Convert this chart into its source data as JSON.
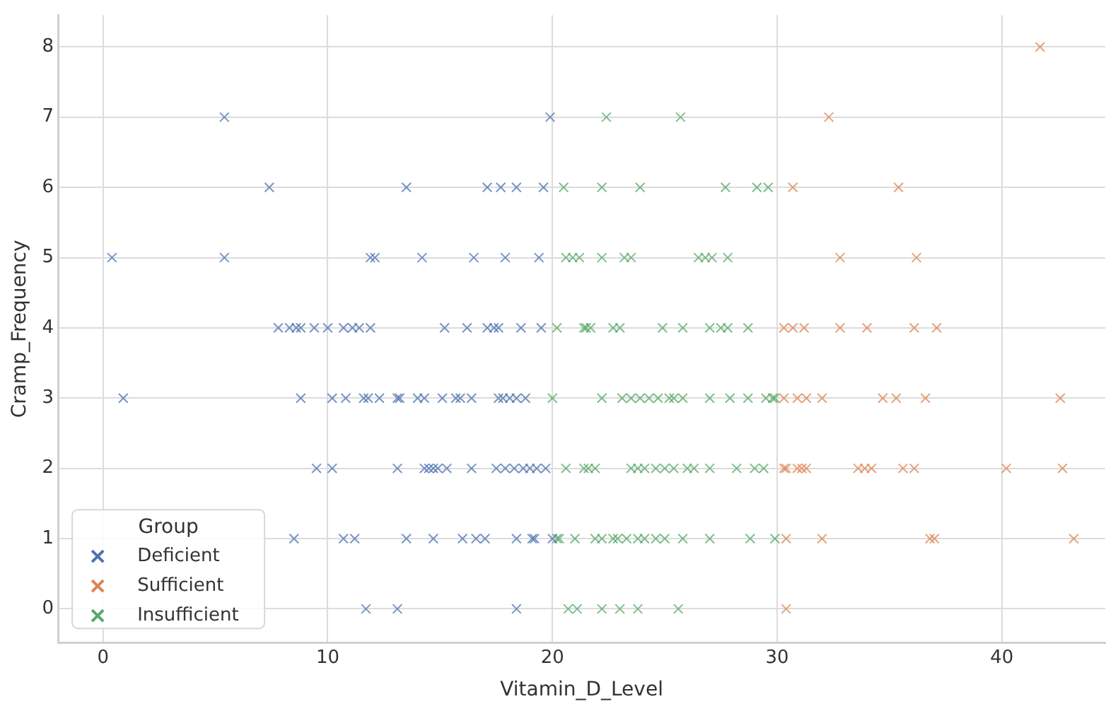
{
  "chart_data": {
    "type": "scatter",
    "xlabel": "Vitamin_D_Level",
    "ylabel": "Cramp_Frequency",
    "legend_title": "Group",
    "legend": "bottom left",
    "marker": "cross",
    "grid": true,
    "xlim": [
      -2,
      44.6
    ],
    "ylim": [
      -0.48,
      8.45
    ],
    "xticks": [
      0,
      10,
      20,
      30,
      40
    ],
    "yticks": [
      0,
      1,
      2,
      3,
      4,
      5,
      6,
      7,
      8
    ],
    "series": [
      {
        "name": "Deficient",
        "color": "#4c72b0",
        "x": [
          5.4,
          19.9,
          7.4,
          13.5,
          17.1,
          17.7,
          18.4,
          19.6,
          0.4,
          5.4,
          11.9,
          12.1,
          14.2,
          16.5,
          17.9,
          19.4,
          7.8,
          8.3,
          8.6,
          8.8,
          9.4,
          10.0,
          10.7,
          11.1,
          11.4,
          11.9,
          15.2,
          16.2,
          17.1,
          17.4,
          17.6,
          18.6,
          19.5,
          0.9,
          8.8,
          10.2,
          10.8,
          11.6,
          11.8,
          12.3,
          13.1,
          13.2,
          14.0,
          14.3,
          15.1,
          15.7,
          15.9,
          16.4,
          17.6,
          17.8,
          18.1,
          18.4,
          18.8,
          9.5,
          10.2,
          13.1,
          14.3,
          14.5,
          14.7,
          14.9,
          15.3,
          16.4,
          17.5,
          17.9,
          18.3,
          18.7,
          19.0,
          19.3,
          19.7,
          8.5,
          10.7,
          11.2,
          13.5,
          14.7,
          16.0,
          16.6,
          17.0,
          18.4,
          19.1,
          19.2,
          20.0,
          11.7,
          13.1,
          18.4
        ],
        "values": [
          7,
          7,
          6,
          6,
          6,
          6,
          6,
          6,
          5,
          5,
          5,
          5,
          5,
          5,
          5,
          5,
          4,
          4,
          4,
          4,
          4,
          4,
          4,
          4,
          4,
          4,
          4,
          4,
          4,
          4,
          4,
          4,
          4,
          3,
          3,
          3,
          3,
          3,
          3,
          3,
          3,
          3,
          3,
          3,
          3,
          3,
          3,
          3,
          3,
          3,
          3,
          3,
          3,
          2,
          2,
          2,
          2,
          2,
          2,
          2,
          2,
          2,
          2,
          2,
          2,
          2,
          2,
          2,
          2,
          1,
          1,
          1,
          1,
          1,
          1,
          1,
          1,
          1,
          1,
          1,
          1,
          0,
          0,
          0
        ]
      },
      {
        "name": "Sufficient",
        "color": "#dd8452",
        "x": [
          41.7,
          32.3,
          30.7,
          35.4,
          32.8,
          36.2,
          30.3,
          30.7,
          31.2,
          32.8,
          34.0,
          36.1,
          37.1,
          30.3,
          30.9,
          31.3,
          32.0,
          34.7,
          35.3,
          36.6,
          42.6,
          30.3,
          30.4,
          30.9,
          31.1,
          31.3,
          33.6,
          33.9,
          34.2,
          35.6,
          36.1,
          40.2,
          42.7,
          30.4,
          32.0,
          36.8,
          37.0,
          43.2,
          30.4
        ],
        "values": [
          8,
          7,
          6,
          6,
          5,
          5,
          4,
          4,
          4,
          4,
          4,
          4,
          4,
          3,
          3,
          3,
          3,
          3,
          3,
          3,
          3,
          2,
          2,
          2,
          2,
          2,
          2,
          2,
          2,
          2,
          2,
          2,
          2,
          1,
          1,
          1,
          1,
          1,
          0
        ]
      },
      {
        "name": "Insufficient",
        "color": "#55a868",
        "x": [
          22.4,
          25.7,
          20.5,
          22.2,
          23.9,
          27.7,
          29.1,
          29.6,
          20.6,
          20.9,
          21.2,
          22.2,
          23.2,
          23.5,
          26.5,
          26.8,
          27.1,
          27.8,
          20.2,
          21.4,
          21.5,
          21.7,
          22.7,
          23.0,
          24.9,
          25.8,
          27.0,
          27.5,
          27.8,
          28.7,
          20.0,
          22.2,
          23.1,
          23.5,
          23.9,
          24.3,
          24.7,
          25.2,
          25.4,
          25.8,
          27.0,
          27.9,
          28.7,
          29.5,
          29.8,
          29.9,
          20.6,
          21.4,
          21.6,
          21.9,
          23.5,
          23.8,
          24.1,
          24.6,
          25.0,
          25.4,
          26.0,
          26.3,
          27.0,
          28.2,
          29.0,
          29.4,
          20.2,
          20.3,
          21.0,
          21.9,
          22.2,
          22.7,
          22.9,
          23.3,
          23.8,
          24.1,
          24.6,
          25.0,
          25.8,
          27.0,
          28.8,
          29.9,
          20.7,
          21.1,
          22.2,
          23.0,
          23.8,
          25.6
        ],
        "values": [
          7,
          7,
          6,
          6,
          6,
          6,
          6,
          6,
          5,
          5,
          5,
          5,
          5,
          5,
          5,
          5,
          5,
          5,
          4,
          4,
          4,
          4,
          4,
          4,
          4,
          4,
          4,
          4,
          4,
          4,
          3,
          3,
          3,
          3,
          3,
          3,
          3,
          3,
          3,
          3,
          3,
          3,
          3,
          3,
          3,
          3,
          2,
          2,
          2,
          2,
          2,
          2,
          2,
          2,
          2,
          2,
          2,
          2,
          2,
          2,
          2,
          2,
          1,
          1,
          1,
          1,
          1,
          1,
          1,
          1,
          1,
          1,
          1,
          1,
          1,
          1,
          1,
          1,
          0,
          0,
          0,
          0,
          0,
          0
        ]
      }
    ]
  }
}
